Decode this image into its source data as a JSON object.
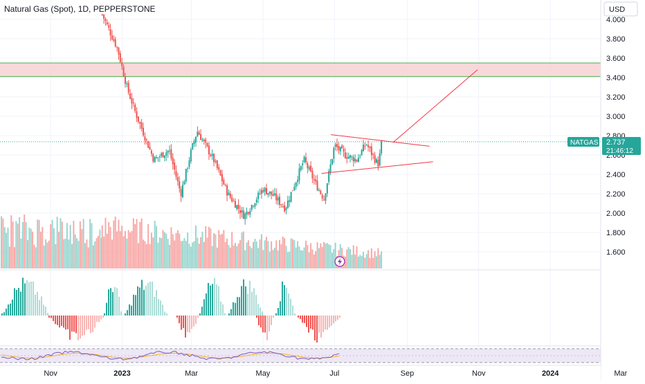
{
  "header": {
    "symbol_title": "Natural Gas (Spot), 1D, PEPPERSTONE",
    "currency_button": "USD"
  },
  "price_badge": {
    "symbol": "NATGAS",
    "price": "2.737",
    "countdown": "21:46:12"
  },
  "colors": {
    "up": "#26a69a",
    "down": "#ef5350",
    "zone_fill": "#f6cfcf",
    "zone_border": "#4caf50",
    "drawing": "#f23645",
    "rsi_line": "#7e57c2",
    "rsi_ma": "#f5b81e",
    "rsi_band": "#ede7f6"
  },
  "icons": {
    "bolt": "lightning-icon"
  },
  "chart_data": [
    {
      "type": "candlestick",
      "title": "Natural Gas (Spot), 1D, PEPPERSTONE",
      "x_ticks": [
        "Nov",
        "2023",
        "Mar",
        "May",
        "Jul",
        "Sep",
        "Nov",
        "2024",
        "Mar"
      ],
      "y_ticks": [
        "4.000",
        "3.800",
        "3.600",
        "3.400",
        "3.200",
        "3.000",
        "2.800",
        "2.600",
        "2.400",
        "2.200",
        "2.000",
        "1.800",
        "1.600"
      ],
      "ylim": [
        1.5,
        4.1
      ],
      "last_price": 2.737,
      "key_points": [
        {
          "date": "2022-12-15",
          "price": 4.05
        },
        {
          "date": "2022-12-28",
          "price": 3.7
        },
        {
          "date": "2023-01-05",
          "price": 3.3
        },
        {
          "date": "2023-01-12",
          "price": 3.05
        },
        {
          "date": "2023-01-20",
          "price": 2.8
        },
        {
          "date": "2023-01-28",
          "price": 2.55
        },
        {
          "date": "2023-02-10",
          "price": 2.65
        },
        {
          "date": "2023-02-20",
          "price": 2.2
        },
        {
          "date": "2023-03-01",
          "price": 2.65
        },
        {
          "date": "2023-03-06",
          "price": 2.85
        },
        {
          "date": "2023-03-20",
          "price": 2.55
        },
        {
          "date": "2023-04-01",
          "price": 2.2
        },
        {
          "date": "2023-04-15",
          "price": 1.97
        },
        {
          "date": "2023-05-01",
          "price": 2.25
        },
        {
          "date": "2023-05-10",
          "price": 2.18
        },
        {
          "date": "2023-05-20",
          "price": 2.05
        },
        {
          "date": "2023-06-05",
          "price": 2.55
        },
        {
          "date": "2023-06-15",
          "price": 2.3
        },
        {
          "date": "2023-06-22",
          "price": 2.15
        },
        {
          "date": "2023-07-01",
          "price": 2.7
        },
        {
          "date": "2023-07-10",
          "price": 2.6
        },
        {
          "date": "2023-07-20",
          "price": 2.55
        },
        {
          "date": "2023-07-28",
          "price": 2.72
        },
        {
          "date": "2023-08-07",
          "price": 2.5
        },
        {
          "date": "2023-08-11",
          "price": 2.737
        }
      ],
      "resistance_zone": [
        3.41,
        3.55
      ],
      "annotations": [
        "symmetrical triangle",
        "projected breakout arrow toward resistance zone"
      ]
    },
    {
      "type": "histogram",
      "title": "",
      "y_ticks": [
        "0.050",
        "0.000"
      ],
      "ylim": [
        -0.035,
        0.06
      ],
      "note": "momentum histogram, green above zero and red below zero"
    },
    {
      "type": "line",
      "title": "",
      "y_ticks": [
        "50.00"
      ],
      "note": "RSI line with moving average inside shaded band"
    }
  ]
}
